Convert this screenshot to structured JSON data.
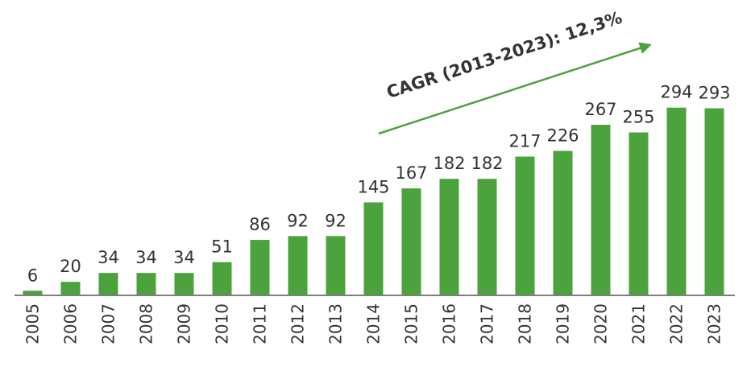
{
  "chart_data": {
    "type": "bar",
    "annotation": "CAGR (2013-2023): 12,3%",
    "categories": [
      "2005",
      "2006",
      "2007",
      "2008",
      "2009",
      "2010",
      "2011",
      "2012",
      "2013",
      "2014",
      "2015",
      "2016",
      "2017",
      "2018",
      "2019",
      "2020",
      "2021",
      "2022",
      "2023"
    ],
    "values": [
      6,
      20,
      34,
      34,
      34,
      51,
      86,
      92,
      92,
      145,
      167,
      182,
      182,
      217,
      226,
      267,
      255,
      294,
      293
    ],
    "color": "#4ca23d",
    "ylim": [
      0,
      300
    ]
  }
}
